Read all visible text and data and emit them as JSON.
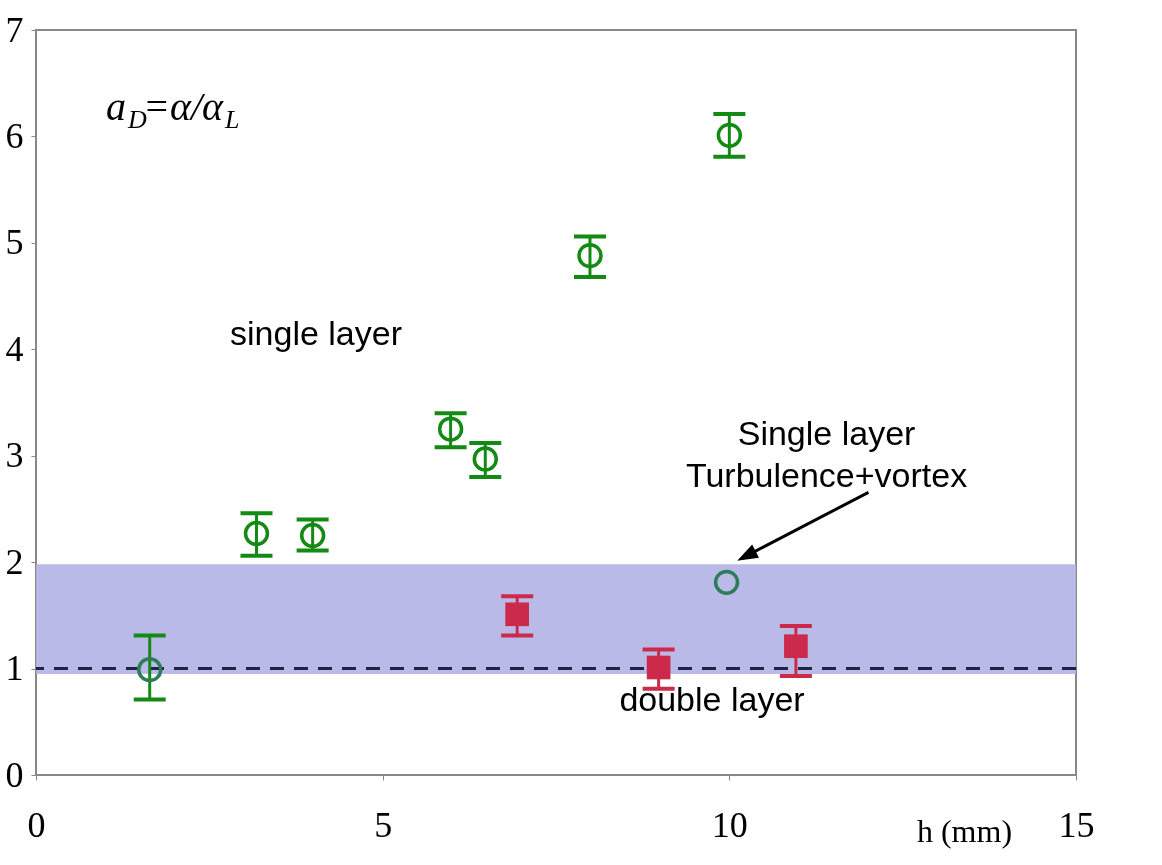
{
  "chart_data": {
    "type": "scatter",
    "xlabel": "h (mm)",
    "xlim": [
      0,
      15
    ],
    "xticks": [
      0,
      5,
      10,
      15
    ],
    "ylim": [
      0,
      7
    ],
    "yticks": [
      0,
      1,
      2,
      3,
      4,
      5,
      6,
      7
    ],
    "grid": false,
    "series": [
      {
        "type": "scatter",
        "marker": "circle",
        "color": "#138a13",
        "colors": [
          "#2e7d5a",
          "#138a13",
          "#138a13",
          "#138a13",
          "#138a13",
          "#138a13",
          "#138a13",
          "#2e7d5a"
        ],
        "x": [
          1.64,
          3.18,
          3.99,
          5.98,
          6.48,
          7.99,
          10.0,
          9.96
        ],
        "values": [
          0.99,
          2.27,
          2.25,
          3.25,
          2.97,
          4.88,
          6.01,
          1.81
        ],
        "errors": [
          [
            0.71,
            1.31
          ],
          [
            2.06,
            2.46
          ],
          [
            2.11,
            2.4
          ],
          [
            3.08,
            3.4
          ],
          [
            2.8,
            3.12
          ],
          [
            4.68,
            5.06
          ],
          [
            5.81,
            6.21
          ],
          null
        ]
      },
      {
        "type": "scatter",
        "marker": "square",
        "color": "#cc2a4a",
        "x": [
          6.94,
          8.98,
          10.96
        ],
        "values": [
          1.51,
          1.01,
          1.21
        ],
        "errors": [
          [
            1.31,
            1.68
          ],
          [
            0.81,
            1.18
          ],
          [
            0.93,
            1.4
          ]
        ]
      }
    ],
    "ref_lines": [
      {
        "axis": "y",
        "value": 1,
        "color": "#222244",
        "line_style": "dashed"
      }
    ],
    "bands": [
      {
        "axis": "y",
        "from": 0.95,
        "to": 1.98,
        "color": "#b3b3e6",
        "label": "double layer"
      }
    ],
    "annotations": [
      "a$_{D}$=α/α$_{L}$",
      "single layer",
      {
        "text": "Single layer\nTurbulence+vortex",
        "x": 9.96,
        "y": 1.81
      }
    ]
  }
}
